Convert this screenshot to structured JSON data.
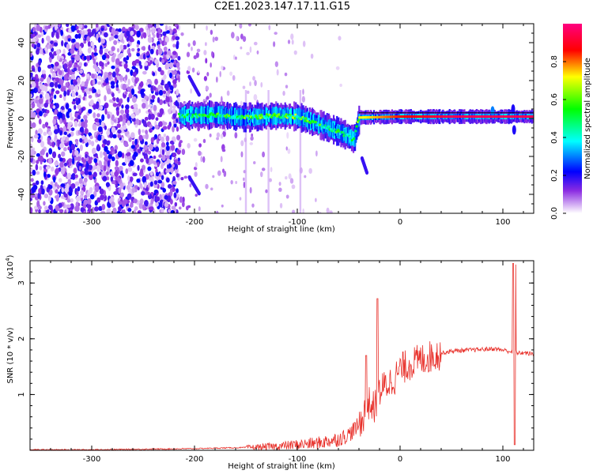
{
  "page_title": "C2E1.2023.147.17.11.G15",
  "colors": {
    "snr_line": "#e8302a",
    "spectrogram_low": "#8a2be2",
    "spectrogram_high": "#e60000",
    "frame": "#000000"
  },
  "chart_data": [
    {
      "type": "heatmap",
      "title": "C2E1.2023.147.17.11.G15",
      "xlabel": "Height of straight line (km)",
      "ylabel": "Frequency (Hz)",
      "xlim": [
        -360,
        130
      ],
      "ylim": [
        -50,
        50
      ],
      "xticks": [
        -300,
        -200,
        -100,
        0,
        100
      ],
      "yticks": [
        -40,
        -20,
        0,
        20,
        40
      ],
      "colorbar": {
        "label": "Normalized spectral amplitude",
        "range": [
          0,
          1
        ],
        "ticks": [
          0.0,
          0.2,
          0.4,
          0.6,
          0.8
        ],
        "tick_labels": [
          "0.0",
          "0.2",
          "0.4",
          "0.6",
          "0.8"
        ],
        "colormap": [
          "#ffffff",
          "#8a2be2",
          "#0000ff",
          "#00ffff",
          "#00ff00",
          "#ffff00",
          "#ff0000",
          "#ff0080"
        ]
      },
      "features": {
        "noise_region_x": [
          -360,
          -215
        ],
        "main_track": [
          {
            "x": -215,
            "f": 1.5,
            "amp": 0.55
          },
          {
            "x": -180,
            "f": 2.0,
            "amp": 0.6
          },
          {
            "x": -150,
            "f": 0.5,
            "amp": 0.65
          },
          {
            "x": -120,
            "f": 1.5,
            "amp": 0.65
          },
          {
            "x": -100,
            "f": 1.0,
            "amp": 0.7
          },
          {
            "x": -80,
            "f": -3.0,
            "amp": 0.6
          },
          {
            "x": -60,
            "f": -7.0,
            "amp": 0.6
          },
          {
            "x": -45,
            "f": -11.0,
            "amp": 0.55
          },
          {
            "x": -40,
            "f": 0.5,
            "amp": 0.7
          },
          {
            "x": 0,
            "f": 1.0,
            "amp": 0.85
          },
          {
            "x": 50,
            "f": 1.0,
            "amp": 0.95
          },
          {
            "x": 100,
            "f": 1.0,
            "amp": 0.95
          },
          {
            "x": 130,
            "f": 1.0,
            "amp": 0.95
          }
        ],
        "side_branches": [
          {
            "x": [
              -205,
              -195
            ],
            "f": [
              22,
              12
            ]
          },
          {
            "x": [
              -205,
              -195
            ],
            "f": [
              -31,
              -40
            ]
          },
          {
            "x": [
              -37,
              -32
            ],
            "f": [
              -21,
              -29
            ]
          }
        ]
      }
    },
    {
      "type": "line",
      "xlabel": "Height of straight line (km)",
      "ylabel": "SNR (10 * v/v)",
      "y_multiplier_label": "(x10",
      "y_multiplier_exp": "4",
      "xlim": [
        -360,
        130
      ],
      "ylim": [
        0,
        3.4
      ],
      "xticks": [
        -300,
        -200,
        -100,
        0,
        100
      ],
      "yticks": [
        1,
        2,
        3
      ],
      "series": [
        {
          "x": [
            -360,
            -300,
            -250,
            -200,
            -150,
            -120,
            -100,
            -80,
            -60,
            -50,
            -40,
            -35,
            -30,
            -25,
            -22,
            -20,
            -15,
            -10,
            -5,
            0,
            10,
            20,
            30,
            40,
            50,
            60,
            70,
            80,
            90,
            100,
            105,
            108,
            110,
            111,
            112,
            113,
            115,
            120,
            130
          ],
          "y": [
            0.01,
            0.01,
            0.02,
            0.03,
            0.05,
            0.07,
            0.1,
            0.13,
            0.2,
            0.28,
            0.45,
            0.65,
            0.85,
            0.75,
            0.95,
            1.05,
            1.15,
            1.22,
            1.3,
            1.45,
            1.55,
            1.62,
            1.68,
            1.74,
            1.78,
            1.79,
            1.8,
            1.81,
            1.82,
            1.8,
            1.78,
            1.77,
            1.75,
            1.76,
            1.75,
            1.76,
            1.74,
            1.75,
            1.72
          ]
        }
      ],
      "spikes": [
        {
          "x": -33,
          "y": 1.7
        },
        {
          "x": -22,
          "y": 2.72
        },
        {
          "x": 110,
          "y": 3.35
        },
        {
          "x": 112,
          "y": 3.33
        }
      ]
    }
  ]
}
